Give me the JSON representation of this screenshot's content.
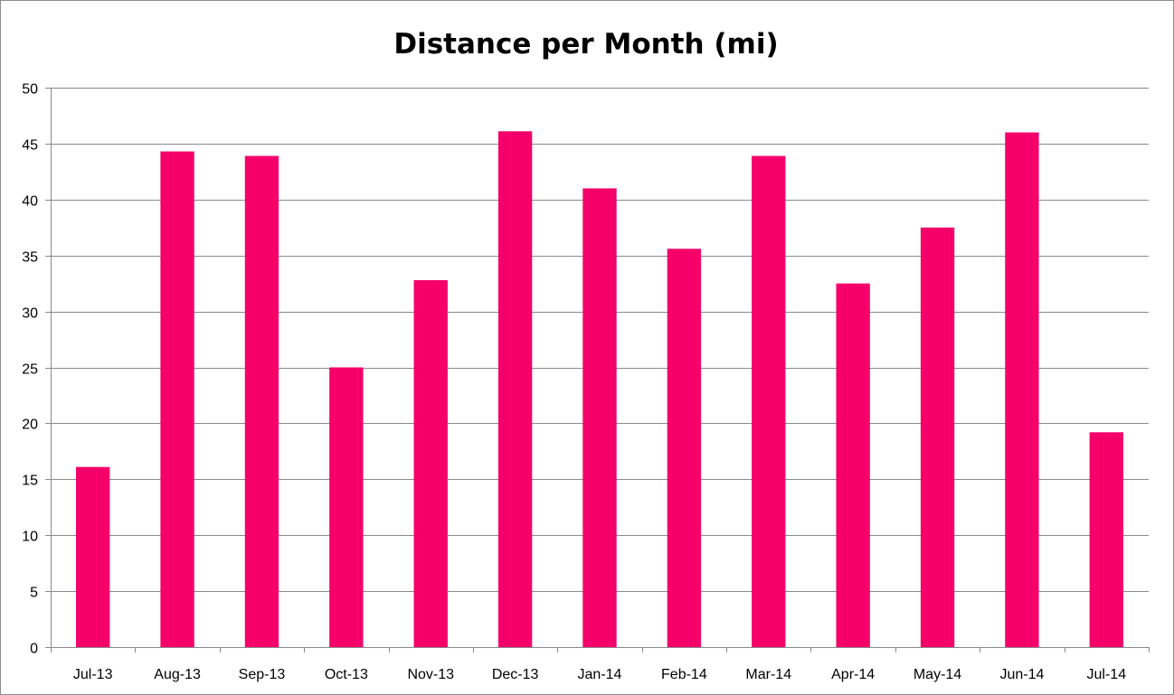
{
  "chart_data": {
    "type": "bar",
    "title": "Distance per Month (mi)",
    "xlabel": "",
    "ylabel": "",
    "categories": [
      "Jul-13",
      "Aug-13",
      "Sep-13",
      "Oct-13",
      "Nov-13",
      "Dec-13",
      "Jan-14",
      "Feb-14",
      "Mar-14",
      "Apr-14",
      "May-14",
      "Jun-14",
      "Jul-14"
    ],
    "values": [
      16.1,
      44.3,
      43.9,
      25.0,
      32.8,
      46.1,
      41.0,
      35.6,
      43.9,
      32.5,
      37.5,
      46.0,
      19.2
    ],
    "ylim": [
      0,
      50
    ],
    "yticks": [
      0,
      5,
      10,
      15,
      20,
      25,
      30,
      35,
      40,
      45,
      50
    ],
    "grid": true,
    "legend": "none",
    "bar_color": "#f5006a"
  }
}
